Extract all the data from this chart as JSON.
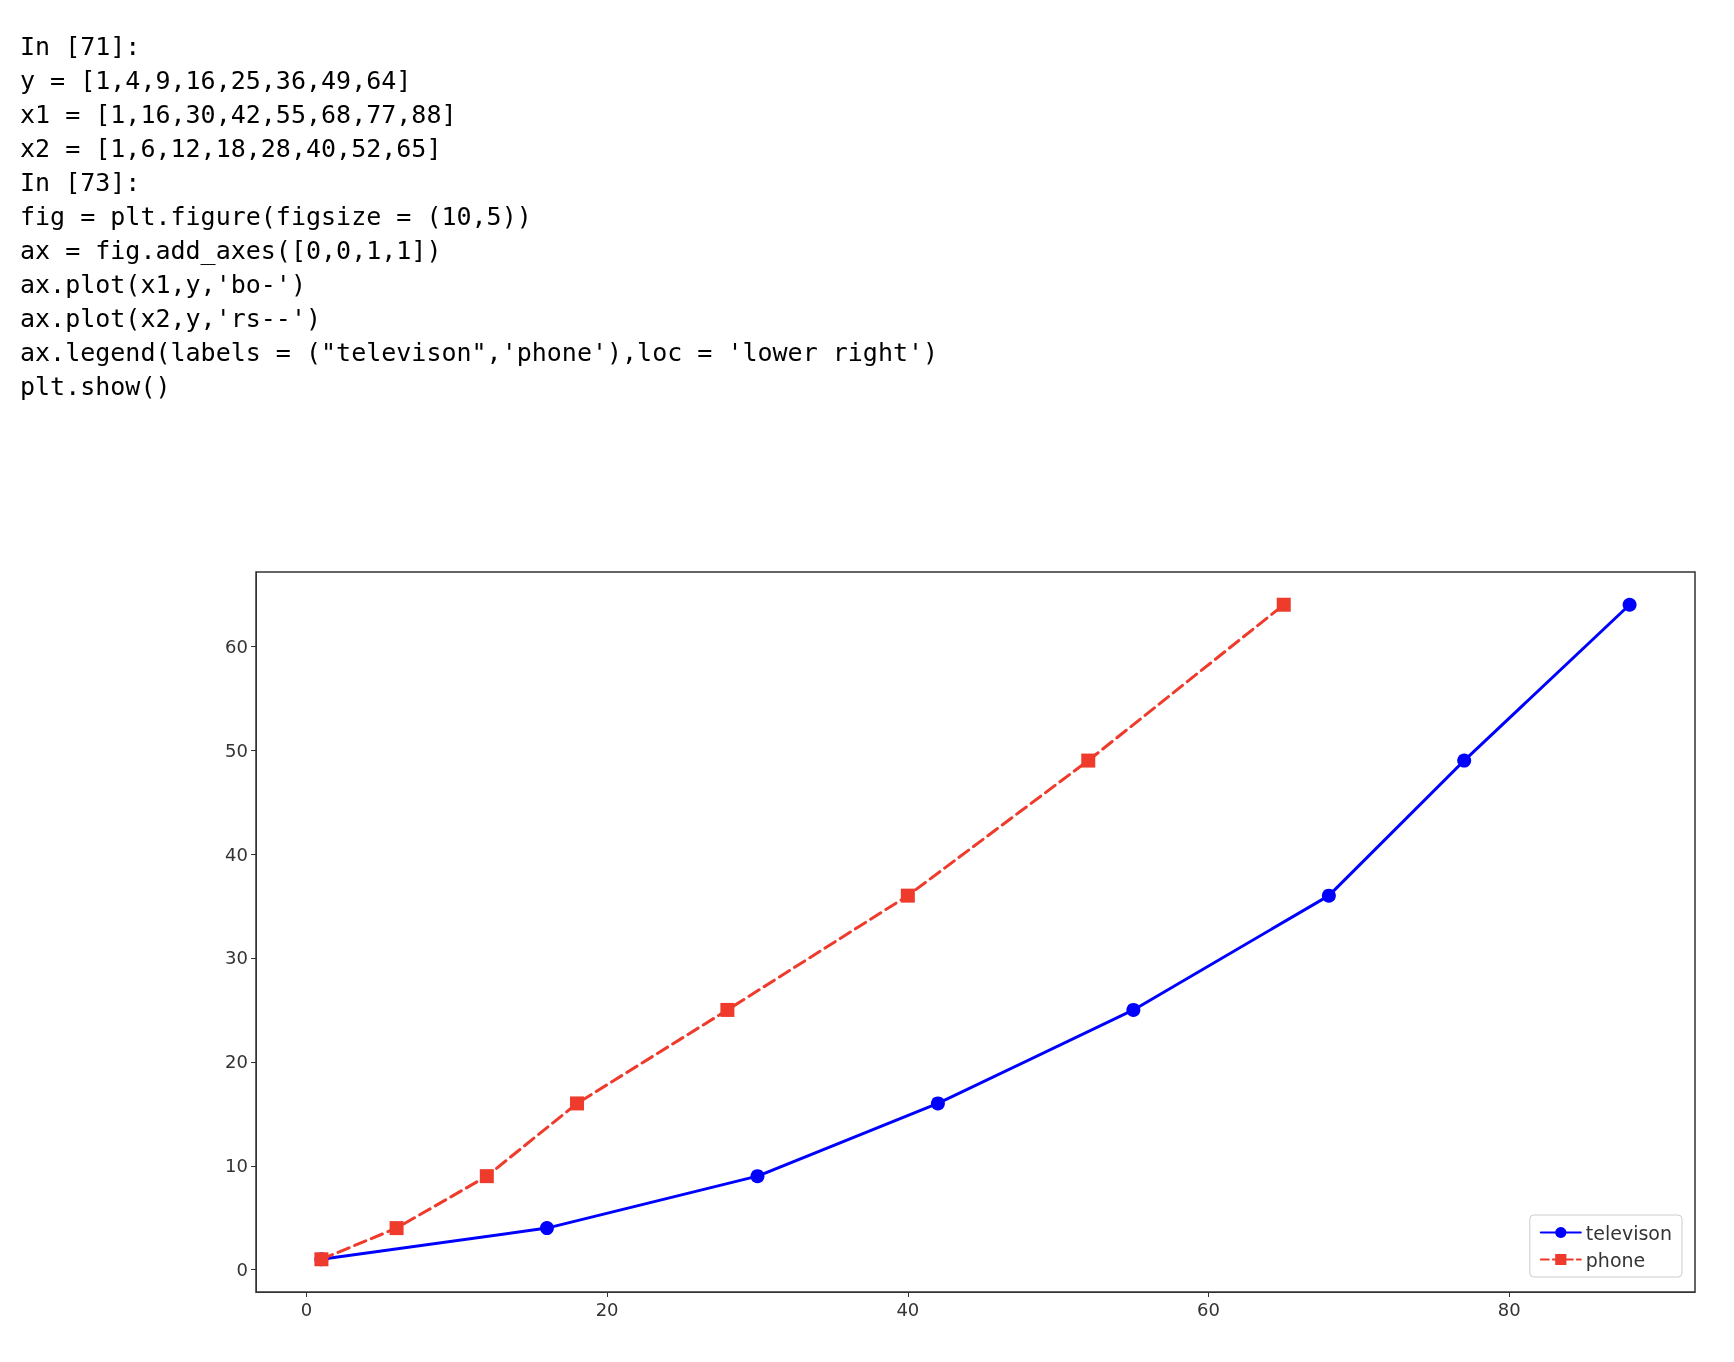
{
  "chart_data": {
    "type": "line",
    "annotations": [
      "In [71]:",
      "y = [1,4,9,16,25,36,49,64]",
      "x1 = [1,16,30,42,55,68,77,88]",
      "x2 = [1,6,12,18,28,40,52,65]",
      "In [73]:",
      "fig = plt.figure(figsize = (10,5))",
      "ax = fig.add_axes([0,0,1,1])",
      "ax.plot(x1,y,'bo-')",
      "ax.plot(x2,y,'rs--')",
      "ax.legend(labels = (\"televison\",'phone'),loc = 'lower right')",
      "plt.show()"
    ],
    "series": [
      {
        "name": "televison",
        "color": "#0000ff",
        "marker": "circle",
        "line_style": "solid",
        "x": [
          1,
          16,
          30,
          42,
          55,
          68,
          77,
          88
        ],
        "values": [
          1,
          4,
          9,
          16,
          25,
          36,
          49,
          64
        ]
      },
      {
        "name": "phone",
        "color": "#ef3b2c",
        "marker": "square",
        "line_style": "dashed",
        "x": [
          1,
          6,
          12,
          18,
          28,
          40,
          52,
          65
        ],
        "values": [
          1,
          4,
          9,
          16,
          25,
          36,
          49,
          64
        ]
      }
    ],
    "xlim": [
      -3.35,
      92.35
    ],
    "xticks": [
      0,
      20,
      40,
      60,
      80
    ],
    "ylim": [
      -2.15,
      67.15
    ],
    "yticks": [
      0,
      10,
      20,
      30,
      40,
      50,
      60
    ],
    "legend": "bottom right"
  }
}
